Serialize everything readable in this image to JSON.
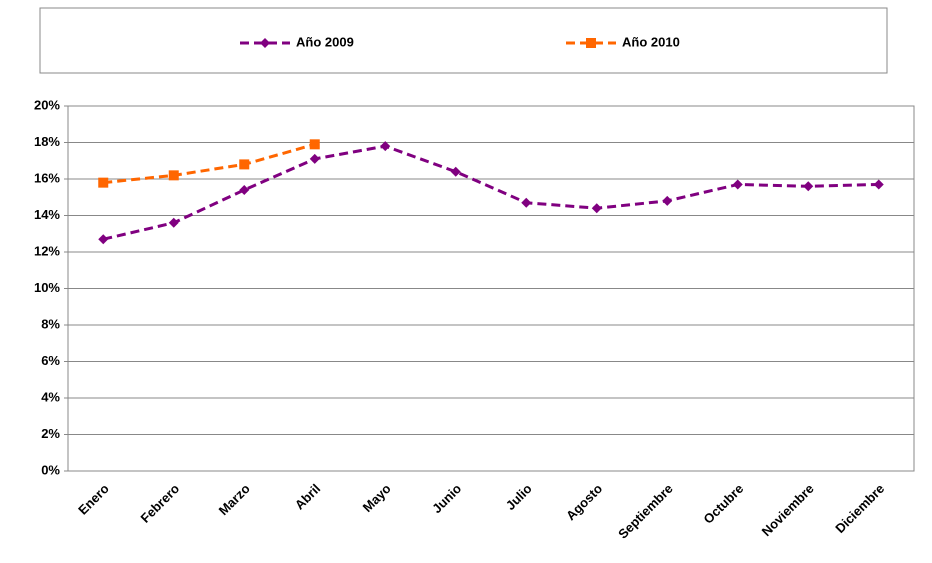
{
  "chart_data": {
    "type": "line",
    "categories": [
      "Enero",
      "Febrero",
      "Marzo",
      "Abril",
      "Mayo",
      "Junio",
      "Julio",
      "Agosto",
      "Septiembre",
      "Octubre",
      "Noviembre",
      "Diciembre"
    ],
    "series": [
      {
        "name": "Año 2009",
        "color": "#800080",
        "marker": "diamond",
        "dashed": true,
        "values": [
          12.7,
          13.6,
          15.4,
          17.1,
          17.8,
          16.4,
          14.7,
          14.4,
          14.8,
          15.7,
          15.6,
          15.7
        ]
      },
      {
        "name": "Año 2010",
        "color": "#ff6600",
        "marker": "square",
        "dashed": true,
        "values": [
          15.8,
          16.2,
          16.8,
          17.9,
          null,
          null,
          null,
          null,
          null,
          null,
          null,
          null
        ]
      }
    ],
    "ylim": [
      0,
      20
    ],
    "yticks": [
      {
        "value": 0,
        "label": "0%"
      },
      {
        "value": 2,
        "label": "2%"
      },
      {
        "value": 4,
        "label": "4%"
      },
      {
        "value": 6,
        "label": "6%"
      },
      {
        "value": 8,
        "label": "8%"
      },
      {
        "value": 10,
        "label": "10%"
      },
      {
        "value": 12,
        "label": "12%"
      },
      {
        "value": 14,
        "label": "14%"
      },
      {
        "value": 16,
        "label": "16%"
      },
      {
        "value": 18,
        "label": "18%"
      },
      {
        "value": 20,
        "label": "20%"
      }
    ],
    "grid": true,
    "legend": "top"
  }
}
